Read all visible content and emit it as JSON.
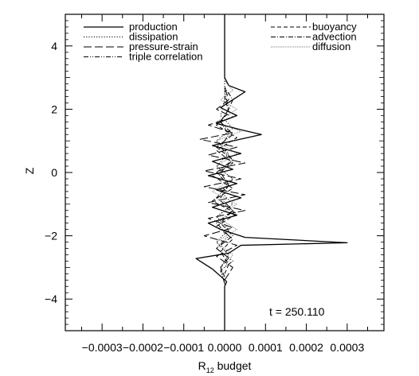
{
  "chart_data": {
    "type": "line",
    "xlabel": "R",
    "xlabel_subscript": "12",
    "xlabel_suffix": " budget",
    "ylabel": "Z",
    "xlim": [
      -0.00039,
      0.00039
    ],
    "ylim": [
      -5,
      5
    ],
    "x_ticks": [
      -0.0003,
      -0.0002,
      -0.0001,
      0.0,
      0.0001,
      0.0002,
      0.0003
    ],
    "x_tick_labels": [
      "−0.0003",
      "−0.0002",
      "−0.0001",
      "0.0000",
      "0.0001",
      "0.0002",
      "0.0003"
    ],
    "y_ticks": [
      -4,
      -2,
      0,
      2,
      4
    ],
    "y_tick_labels": [
      "−4",
      "−2",
      "0",
      "2",
      "4"
    ],
    "grid": false,
    "legend_position": "top",
    "annotation": "t = 250.110",
    "series": [
      {
        "name": "production",
        "style": "solid",
        "points": [
          [
            0.0,
            -5.0
          ],
          [
            0.0,
            -3.6
          ],
          [
            5e-06,
            -3.45
          ],
          [
            -3e-05,
            -3.05
          ],
          [
            -7e-05,
            -2.72
          ],
          [
            1e-05,
            -2.55
          ],
          [
            4e-05,
            -2.3
          ],
          [
            0.0003,
            -2.22
          ],
          [
            5e-05,
            -2.05
          ],
          [
            -1e-05,
            -1.8
          ],
          [
            -4e-05,
            -1.6
          ],
          [
            3e-05,
            -1.35
          ],
          [
            -3e-05,
            -1.1
          ],
          [
            4e-05,
            -0.8
          ],
          [
            -2e-05,
            -0.55
          ],
          [
            3e-05,
            -0.35
          ],
          [
            -4e-05,
            -0.1
          ],
          [
            2e-05,
            0.1
          ],
          [
            -3e-05,
            0.35
          ],
          [
            4e-05,
            0.6
          ],
          [
            -3e-05,
            0.85
          ],
          [
            2e-05,
            1.0
          ],
          [
            9e-05,
            1.2
          ],
          [
            4e-05,
            1.35
          ],
          [
            -2e-05,
            1.55
          ],
          [
            3e-05,
            1.8
          ],
          [
            -1e-05,
            2.05
          ],
          [
            2e-05,
            2.3
          ],
          [
            5e-05,
            2.55
          ],
          [
            1e-05,
            2.75
          ],
          [
            0.0,
            3.0
          ],
          [
            0.0,
            5.0
          ]
        ]
      },
      {
        "name": "dissipation",
        "style": "dotted",
        "points": [
          [
            0.0,
            -4.5
          ],
          [
            0.0,
            -3.5
          ],
          [
            -1e-05,
            -3.0
          ],
          [
            1e-05,
            -2.6
          ],
          [
            -2e-05,
            -2.2
          ],
          [
            1e-05,
            -1.8
          ],
          [
            -2e-05,
            -1.4
          ],
          [
            2e-05,
            -1.0
          ],
          [
            -1e-05,
            -0.6
          ],
          [
            2e-05,
            -0.2
          ],
          [
            -2e-05,
            0.2
          ],
          [
            1e-05,
            0.6
          ],
          [
            -2e-05,
            1.0
          ],
          [
            2e-05,
            1.4
          ],
          [
            -1e-05,
            1.8
          ],
          [
            0.0,
            2.3
          ],
          [
            0.0,
            3.0
          ]
        ]
      },
      {
        "name": "pressure-strain",
        "style": "long-dash",
        "points": [
          [
            0.0,
            -3.4
          ],
          [
            2e-05,
            -3.0
          ],
          [
            -2e-05,
            -2.65
          ],
          [
            3e-05,
            -2.3
          ],
          [
            -5e-05,
            -2.0
          ],
          [
            2e-05,
            -1.75
          ],
          [
            -4e-05,
            -1.45
          ],
          [
            5e-05,
            -1.2
          ],
          [
            -4e-05,
            -0.95
          ],
          [
            5e-05,
            -0.7
          ],
          [
            -5e-05,
            -0.45
          ],
          [
            4e-05,
            -0.2
          ],
          [
            -5e-05,
            0.05
          ],
          [
            5e-05,
            0.3
          ],
          [
            -4e-05,
            0.55
          ],
          [
            3e-05,
            0.8
          ],
          [
            -6e-05,
            1.05
          ],
          [
            2e-05,
            1.25
          ],
          [
            -4e-05,
            1.5
          ],
          [
            2e-05,
            1.75
          ],
          [
            -2e-05,
            2.0
          ],
          [
            1e-05,
            2.3
          ],
          [
            0.0,
            2.7
          ]
        ]
      },
      {
        "name": "triple correlation",
        "style": "dash-dot-dot",
        "points": [
          [
            0.0,
            -3.5
          ],
          [
            -1e-05,
            -3.1
          ],
          [
            2e-05,
            -2.8
          ],
          [
            -2e-05,
            -2.4
          ],
          [
            1e-05,
            -2.0
          ],
          [
            -2e-05,
            -1.6
          ],
          [
            2e-05,
            -1.2
          ],
          [
            -1e-05,
            -0.8
          ],
          [
            1e-05,
            -0.4
          ],
          [
            -2e-05,
            0.0
          ],
          [
            2e-05,
            0.4
          ],
          [
            -1e-05,
            0.8
          ],
          [
            1e-05,
            1.2
          ],
          [
            -1e-05,
            1.6
          ],
          [
            1e-05,
            2.0
          ],
          [
            0.0,
            2.6
          ]
        ]
      },
      {
        "name": "buoyancy",
        "style": "dash",
        "points": [
          [
            0.0,
            -3.2
          ],
          [
            1e-05,
            -2.9
          ],
          [
            -1e-05,
            -2.5
          ],
          [
            2e-05,
            -2.1
          ],
          [
            -2e-05,
            -1.7
          ],
          [
            3e-05,
            -1.3
          ],
          [
            -3e-05,
            -0.9
          ],
          [
            2e-05,
            -0.5
          ],
          [
            -3e-05,
            -0.1
          ],
          [
            2e-05,
            0.3
          ],
          [
            -2e-05,
            0.7
          ],
          [
            3e-05,
            1.1
          ],
          [
            -2e-05,
            1.5
          ],
          [
            1e-05,
            1.9
          ],
          [
            0.0,
            2.4
          ]
        ]
      },
      {
        "name": "advection",
        "style": "dash-dot",
        "points": [
          [
            0.0,
            -3.3
          ],
          [
            -1e-05,
            -3.0
          ],
          [
            1e-05,
            -2.7
          ],
          [
            -2e-05,
            -2.4
          ],
          [
            2e-05,
            -2.0
          ],
          [
            -1e-05,
            -1.6
          ],
          [
            2e-05,
            -1.2
          ],
          [
            -2e-05,
            -0.8
          ],
          [
            1e-05,
            -0.4
          ],
          [
            -1e-05,
            0.0
          ],
          [
            2e-05,
            0.4
          ],
          [
            -2e-05,
            0.8
          ],
          [
            2e-05,
            1.2
          ],
          [
            -1e-05,
            1.6
          ],
          [
            1e-05,
            2.0
          ],
          [
            2e-05,
            2.3
          ],
          [
            0.0,
            2.7
          ]
        ]
      },
      {
        "name": "diffusion",
        "style": "fine-dot",
        "points": [
          [
            0.0,
            -3.0
          ],
          [
            2e-05,
            -2.6
          ],
          [
            -2e-05,
            -2.2
          ],
          [
            3e-05,
            -1.8
          ],
          [
            -2e-05,
            -1.4
          ],
          [
            3e-05,
            -1.0
          ],
          [
            -3e-05,
            -0.6
          ],
          [
            2e-05,
            -0.2
          ],
          [
            -2e-05,
            0.2
          ],
          [
            3e-05,
            0.6
          ],
          [
            -2e-05,
            1.0
          ],
          [
            4e-05,
            1.3
          ],
          [
            -2e-05,
            1.6
          ],
          [
            3e-05,
            2.0
          ],
          [
            -1e-05,
            2.3
          ],
          [
            2e-05,
            2.6
          ],
          [
            0.0,
            2.9
          ]
        ]
      }
    ]
  }
}
